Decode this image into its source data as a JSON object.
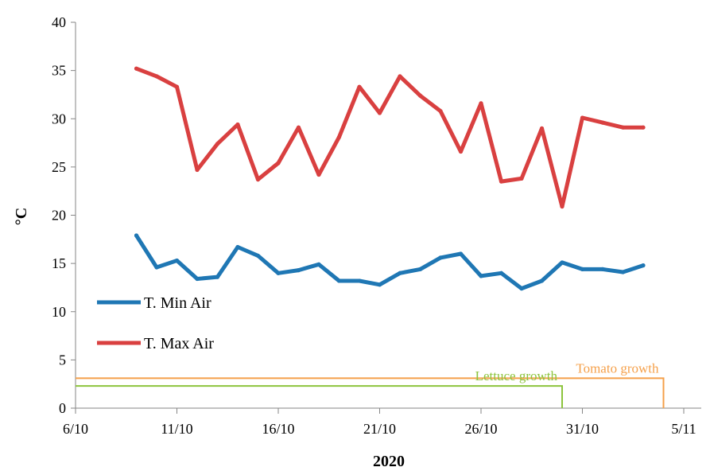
{
  "chart_data": {
    "type": "line",
    "xlabel": "2020",
    "ylabel": "°C",
    "ylim": [
      0,
      40
    ],
    "yticks": [
      "0",
      "5",
      "10",
      "15",
      "20",
      "25",
      "30",
      "35",
      "40"
    ],
    "xlim": [
      "2020-10-06",
      "2020-11-05"
    ],
    "xticks": [
      {
        "date": "2020-10-06",
        "label": "6/10"
      },
      {
        "date": "2020-10-11",
        "label": "11/10"
      },
      {
        "date": "2020-10-16",
        "label": "16/10"
      },
      {
        "date": "2020-10-21",
        "label": "21/10"
      },
      {
        "date": "2020-10-26",
        "label": "26/10"
      },
      {
        "date": "2020-10-31",
        "label": "31/10"
      },
      {
        "date": "2020-11-05",
        "label": "5/11"
      }
    ],
    "x": [
      "2020-10-09",
      "2020-10-10",
      "2020-10-11",
      "2020-10-12",
      "2020-10-13",
      "2020-10-14",
      "2020-10-15",
      "2020-10-16",
      "2020-10-17",
      "2020-10-18",
      "2020-10-19",
      "2020-10-20",
      "2020-10-21",
      "2020-10-22",
      "2020-10-23",
      "2020-10-24",
      "2020-10-25",
      "2020-10-26",
      "2020-10-27",
      "2020-10-28",
      "2020-10-29",
      "2020-10-30",
      "2020-10-31",
      "2020-11-01",
      "2020-11-02",
      "2020-11-03"
    ],
    "series": [
      {
        "name": "T. Min Air",
        "color": "#1f77b4",
        "values": [
          17.9,
          14.6,
          15.3,
          13.4,
          13.6,
          16.7,
          15.8,
          14.0,
          14.3,
          14.9,
          13.2,
          13.2,
          12.8,
          14.0,
          14.4,
          15.6,
          16.0,
          13.7,
          14.0,
          12.4,
          13.2,
          15.1,
          14.4,
          14.4,
          14.1,
          14.8
        ]
      },
      {
        "name": "T. Max Air",
        "color": "#d94040",
        "values": [
          35.2,
          34.4,
          33.3,
          24.7,
          27.4,
          29.4,
          23.7,
          25.4,
          29.1,
          24.2,
          28.1,
          33.3,
          30.6,
          34.4,
          32.4,
          30.8,
          26.6,
          31.6,
          23.5,
          23.8,
          29.0,
          20.9,
          30.1,
          29.6,
          29.1,
          29.1
        ]
      }
    ],
    "legend": "bottom-left",
    "grid": false,
    "annotations": [
      {
        "label": "Tomato growth",
        "color": "#f5a04a",
        "start": "2020-10-06",
        "end": "2020-11-04",
        "level": 3.1
      },
      {
        "label": "Lettuce growth",
        "color": "#8cc43c",
        "start": "2020-10-06",
        "end": "2020-10-30",
        "level": 2.3
      }
    ]
  }
}
